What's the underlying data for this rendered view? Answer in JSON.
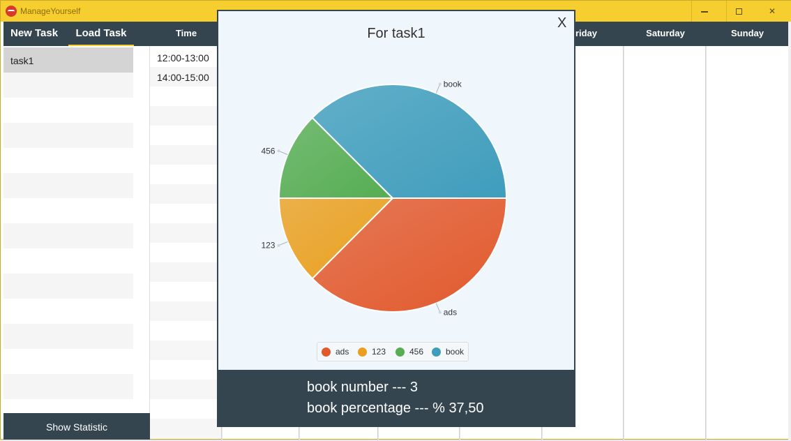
{
  "window": {
    "title": "ManageYourself",
    "app_icon": "app-logo-icon"
  },
  "nav": {
    "new_task": "New Task",
    "load_task": "Load Task"
  },
  "sidebar": {
    "items": [
      "task1"
    ],
    "show_statistic": "Show Statistic"
  },
  "week": {
    "time_header": "Time",
    "columns": [
      "Friday",
      "Saturday",
      "Sunday"
    ]
  },
  "timetable": {
    "slots": [
      "12:00-13:00",
      "14:00-15:00"
    ]
  },
  "dialog": {
    "title": "For task1",
    "close": "X",
    "stats": {
      "number_line": "book number --- 3",
      "percentage_line": "book percentage --- % 37,50"
    }
  },
  "chart_data": {
    "type": "pie",
    "title": "For task1",
    "slices": [
      {
        "label": "ads",
        "value": 3,
        "color": "#e2592c"
      },
      {
        "label": "123",
        "value": 1,
        "color": "#ea9f1e"
      },
      {
        "label": "456",
        "value": 1,
        "color": "#56ad52"
      },
      {
        "label": "book",
        "value": 3,
        "color": "#3f9dbc"
      }
    ],
    "legend_position": "bottom"
  }
}
